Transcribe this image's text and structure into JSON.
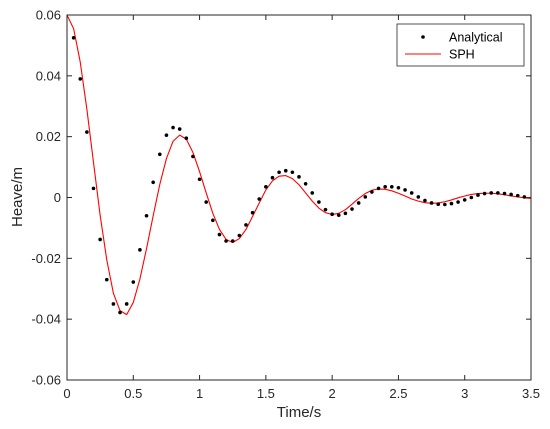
{
  "chart_data": {
    "type": "line",
    "xlabel": "Time/s",
    "ylabel": "Heave/m",
    "xlim": [
      0,
      3.5
    ],
    "ylim": [
      -0.06,
      0.06
    ],
    "xticks": [
      0,
      0.5,
      1,
      1.5,
      2,
      2.5,
      3,
      3.5
    ],
    "yticks": [
      -0.06,
      -0.04,
      -0.02,
      0,
      0.02,
      0.04,
      0.06
    ],
    "xtick_labels": [
      "0",
      "0.5",
      "1",
      "1.5",
      "2",
      "2.5",
      "3",
      "3.5"
    ],
    "ytick_labels": [
      "-0.06",
      "-0.04",
      "-0.02",
      "0",
      "0.02",
      "0.04",
      "0.06"
    ],
    "grid": false,
    "legend_position": "top-right",
    "series": [
      {
        "name": "Analytical",
        "style": "dots",
        "color": "#000000",
        "x": [
          0.05,
          0.1,
          0.15,
          0.2,
          0.25,
          0.3,
          0.35,
          0.4,
          0.45,
          0.5,
          0.55,
          0.6,
          0.65,
          0.7,
          0.75,
          0.8,
          0.85,
          0.9,
          0.95,
          1.0,
          1.05,
          1.1,
          1.15,
          1.2,
          1.25,
          1.3,
          1.35,
          1.4,
          1.45,
          1.5,
          1.55,
          1.6,
          1.65,
          1.7,
          1.75,
          1.8,
          1.85,
          1.9,
          1.95,
          2.0,
          2.05,
          2.1,
          2.15,
          2.2,
          2.25,
          2.3,
          2.35,
          2.4,
          2.45,
          2.5,
          2.55,
          2.6,
          2.65,
          2.7,
          2.75,
          2.8,
          2.85,
          2.9,
          2.95,
          3.0,
          3.05,
          3.1,
          3.15,
          3.2,
          3.25,
          3.3,
          3.35,
          3.4,
          3.45
        ],
        "y": [
          0.0525,
          0.039,
          0.0215,
          0.003,
          -0.0138,
          -0.027,
          -0.035,
          -0.0378,
          -0.035,
          -0.0278,
          -0.0172,
          -0.006,
          0.005,
          0.0142,
          0.0205,
          0.023,
          0.0225,
          0.0195,
          0.0135,
          0.006,
          -0.0015,
          -0.0075,
          -0.0122,
          -0.0143,
          -0.0143,
          -0.0125,
          -0.009,
          -0.005,
          -0.0005,
          0.0035,
          0.0065,
          0.0083,
          0.0088,
          0.0083,
          0.0068,
          0.0045,
          0.0015,
          -0.0015,
          -0.004,
          -0.0055,
          -0.0058,
          -0.0052,
          -0.0038,
          -0.0018,
          0.0002,
          0.0018,
          0.003,
          0.0035,
          0.0035,
          0.0032,
          0.0025,
          0.0015,
          0.0002,
          -0.001,
          -0.0018,
          -0.0022,
          -0.0023,
          -0.002,
          -0.0015,
          -0.0008,
          0.0,
          0.0008,
          0.0013,
          0.0015,
          0.0015,
          0.0013,
          0.001,
          0.0006,
          0.0002
        ]
      },
      {
        "name": "SPH",
        "style": "line",
        "color": "#ff0000",
        "x": [
          0,
          0.05,
          0.1,
          0.15,
          0.2,
          0.25,
          0.3,
          0.35,
          0.4,
          0.45,
          0.5,
          0.55,
          0.6,
          0.65,
          0.7,
          0.75,
          0.8,
          0.85,
          0.9,
          0.95,
          1.0,
          1.05,
          1.1,
          1.15,
          1.2,
          1.25,
          1.3,
          1.35,
          1.4,
          1.45,
          1.5,
          1.55,
          1.6,
          1.65,
          1.7,
          1.75,
          1.8,
          1.85,
          1.9,
          1.95,
          2.0,
          2.05,
          2.1,
          2.15,
          2.2,
          2.25,
          2.3,
          2.35,
          2.4,
          2.45,
          2.5,
          2.55,
          2.6,
          2.65,
          2.7,
          2.75,
          2.8,
          2.85,
          2.9,
          2.95,
          3.0,
          3.05,
          3.1,
          3.15,
          3.2,
          3.25,
          3.3,
          3.35,
          3.4,
          3.45,
          3.5
        ],
        "y": [
          0.06,
          0.0555,
          0.0445,
          0.029,
          0.0115,
          -0.0058,
          -0.0205,
          -0.0315,
          -0.0372,
          -0.0385,
          -0.0345,
          -0.0268,
          -0.0168,
          -0.006,
          0.0043,
          0.0128,
          0.0185,
          0.0205,
          0.0192,
          0.0148,
          0.0085,
          0.0015,
          -0.0052,
          -0.0105,
          -0.0138,
          -0.0148,
          -0.0135,
          -0.0105,
          -0.0062,
          -0.0018,
          0.0025,
          0.0055,
          0.007,
          0.0072,
          0.0062,
          0.0042,
          0.0015,
          -0.0012,
          -0.0035,
          -0.005,
          -0.0056,
          -0.0052,
          -0.004,
          -0.0022,
          -0.0003,
          0.0013,
          0.0024,
          0.0028,
          0.0027,
          0.0022,
          0.0014,
          0.0005,
          -0.0005,
          -0.0012,
          -0.0017,
          -0.0019,
          -0.0018,
          -0.0014,
          -0.0008,
          -0.0001,
          0.0005,
          0.001,
          0.0013,
          0.0014,
          0.0014,
          0.0012,
          0.0009,
          0.0005,
          0.0002,
          -0.0001,
          -0.0003
        ]
      }
    ]
  }
}
